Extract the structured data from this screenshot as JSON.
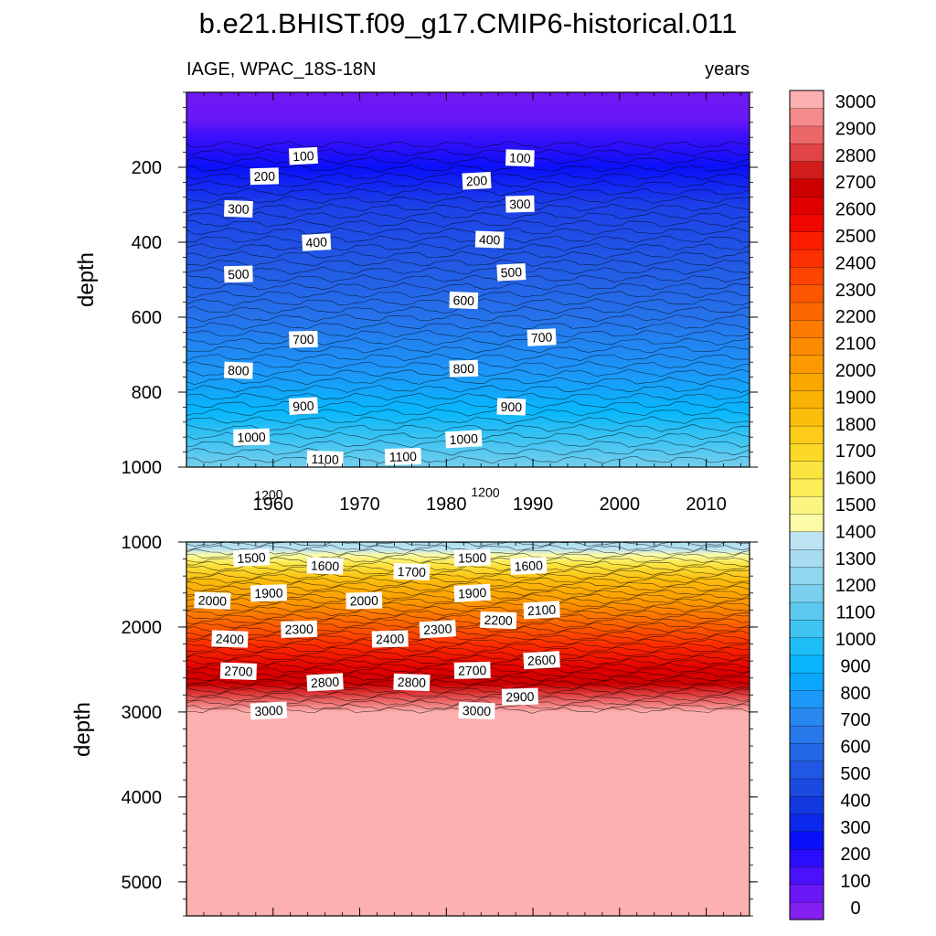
{
  "chart_data": {
    "type": "contour",
    "title": "b.e21.BHIST.f09_g17.CMIP6-historical.011",
    "left_subtitle": "IAGE, WPAC_18S-18N",
    "right_subtitle": "years",
    "x_range": [
      1950,
      2015
    ],
    "x_ticks": [
      1960,
      1970,
      1980,
      1990,
      2000,
      2010
    ],
    "panels": [
      {
        "name": "upper",
        "ylabel": "depth",
        "ylim": [
          0,
          1000
        ],
        "y_ticks": [
          200,
          400,
          600,
          800,
          1000
        ],
        "contour_labels": [
          {
            "value": "100",
            "x": 1963.5,
            "y": 170
          },
          {
            "value": "100",
            "x": 1988.5,
            "y": 175
          },
          {
            "value": "200",
            "x": 1959,
            "y": 224
          },
          {
            "value": "200",
            "x": 1983.5,
            "y": 236
          },
          {
            "value": "300",
            "x": 1956,
            "y": 311
          },
          {
            "value": "300",
            "x": 1988.5,
            "y": 298
          },
          {
            "value": "400",
            "x": 1965,
            "y": 400
          },
          {
            "value": "400",
            "x": 1985,
            "y": 393
          },
          {
            "value": "500",
            "x": 1956,
            "y": 485
          },
          {
            "value": "500",
            "x": 1987.5,
            "y": 480
          },
          {
            "value": "600",
            "x": 1982,
            "y": 555
          },
          {
            "value": "700",
            "x": 1963.5,
            "y": 659
          },
          {
            "value": "700",
            "x": 1991,
            "y": 654
          },
          {
            "value": "800",
            "x": 1956,
            "y": 742
          },
          {
            "value": "800",
            "x": 1982,
            "y": 737
          },
          {
            "value": "900",
            "x": 1963.5,
            "y": 837
          },
          {
            "value": "900",
            "x": 1987.5,
            "y": 839
          },
          {
            "value": "1000",
            "x": 1957.5,
            "y": 920
          },
          {
            "value": "1000",
            "x": 1982,
            "y": 925
          },
          {
            "value": "1100",
            "x": 1966,
            "y": 979
          },
          {
            "value": "1100",
            "x": 1975,
            "y": 972
          },
          {
            "value": "1200",
            "x": 1959.5,
            "y": 1074
          },
          {
            "value": "1200",
            "x": 1984.5,
            "y": 1067
          }
        ]
      },
      {
        "name": "lower",
        "ylabel": "depth",
        "ylim": [
          1000,
          5400
        ],
        "y_ticks": [
          1000,
          2000,
          3000,
          4000,
          5000
        ],
        "contour_labels": [
          {
            "value": "1500",
            "x": 1957.5,
            "y": 1185
          },
          {
            "value": "1600",
            "x": 1966,
            "y": 1280
          },
          {
            "value": "1500",
            "x": 1983,
            "y": 1185
          },
          {
            "value": "1600",
            "x": 1989.5,
            "y": 1280
          },
          {
            "value": "1700",
            "x": 1976,
            "y": 1350
          },
          {
            "value": "1900",
            "x": 1959.5,
            "y": 1600
          },
          {
            "value": "1900",
            "x": 1983,
            "y": 1600
          },
          {
            "value": "2000",
            "x": 1953,
            "y": 1690
          },
          {
            "value": "2000",
            "x": 1970.5,
            "y": 1690
          },
          {
            "value": "2100",
            "x": 1991,
            "y": 1800
          },
          {
            "value": "2200",
            "x": 1986,
            "y": 1920
          },
          {
            "value": "2300",
            "x": 1963,
            "y": 2025
          },
          {
            "value": "2300",
            "x": 1979,
            "y": 2025
          },
          {
            "value": "2400",
            "x": 1955,
            "y": 2140
          },
          {
            "value": "2400",
            "x": 1973.5,
            "y": 2140
          },
          {
            "value": "2600",
            "x": 1991,
            "y": 2390
          },
          {
            "value": "2700",
            "x": 1956,
            "y": 2520
          },
          {
            "value": "2700",
            "x": 1983,
            "y": 2510
          },
          {
            "value": "2800",
            "x": 1966,
            "y": 2650
          },
          {
            "value": "2800",
            "x": 1976,
            "y": 2650
          },
          {
            "value": "2900",
            "x": 1988.5,
            "y": 2820
          },
          {
            "value": "3000",
            "x": 1959.5,
            "y": 2985
          },
          {
            "value": "3000",
            "x": 1983.5,
            "y": 2985
          }
        ]
      }
    ],
    "colorbar": {
      "labels": [
        "0",
        "100",
        "200",
        "300",
        "400",
        "500",
        "600",
        "700",
        "800",
        "900",
        "1000",
        "1100",
        "1200",
        "1300",
        "1400",
        "1500",
        "1600",
        "1700",
        "1800",
        "1900",
        "2000",
        "2100",
        "2200",
        "2300",
        "2400",
        "2500",
        "2600",
        "2700",
        "2800",
        "2900",
        "3000"
      ],
      "colors": [
        "#8420f0",
        "#6a18f6",
        "#4a12fa",
        "#2c0cfc",
        "#0a10fa",
        "#0c28ec",
        "#1238e0",
        "#1a4ae0",
        "#2058e4",
        "#2468e8",
        "#2878ec",
        "#2888f0",
        "#1c98f8",
        "#0ca6fc",
        "#08b4fc",
        "#20bef8",
        "#40c4f2",
        "#5ccaf0",
        "#7ad0ee",
        "#90d6ee",
        "#a8dcf0",
        "#bee4f4",
        "#fcfca8",
        "#fcf480",
        "#fcec58",
        "#fce440",
        "#fcd828",
        "#fccc18",
        "#fcbe0c",
        "#fcb204",
        "#fca600",
        "#fc9800",
        "#fc8a00",
        "#fc7a00",
        "#fc6800",
        "#fc5600",
        "#fc4400",
        "#fc3000",
        "#fc1c00",
        "#f00800",
        "#e00000",
        "#cc0000",
        "#d21c1c",
        "#e04444",
        "#ec6868",
        "#f48a8a",
        "#fcb0b0"
      ]
    }
  }
}
